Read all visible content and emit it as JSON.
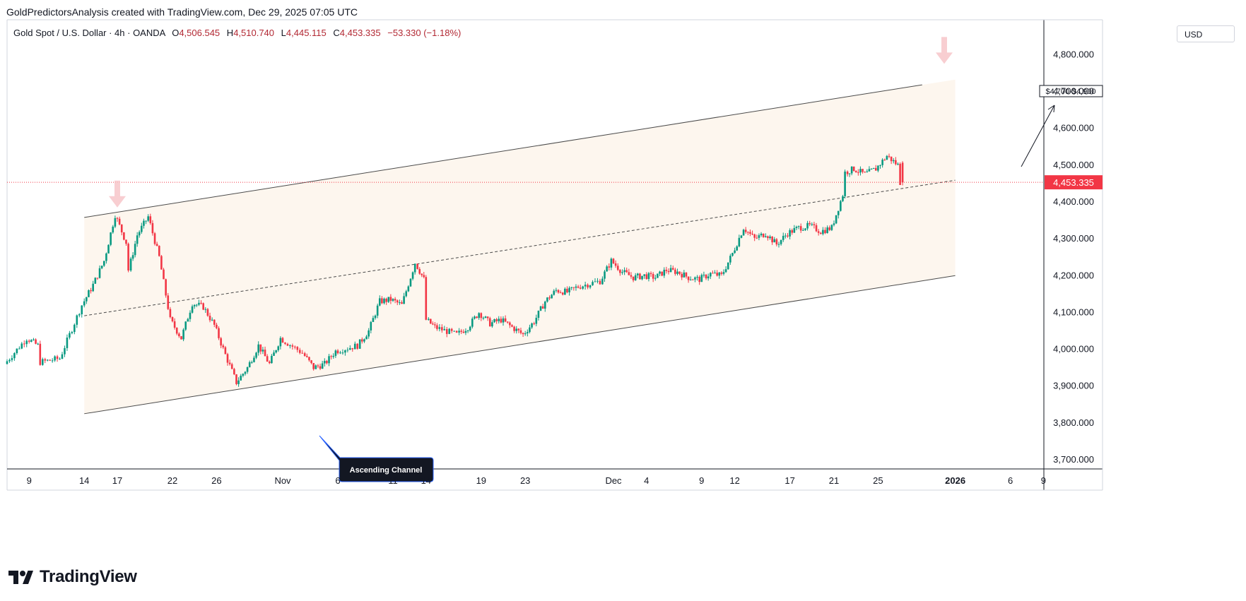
{
  "header": {
    "credit": "GoldPredictorsAnalysis created with TradingView.com, Dec 29, 2025 07:05 UTC"
  },
  "legend": {
    "symbol": "Gold Spot / U.S. Dollar · 4h · OANDA",
    "o_label": "O",
    "o_value": "4,506.545",
    "h_label": "H",
    "h_value": "4,510.740",
    "l_label": "L",
    "l_value": "4,445.115",
    "c_label": "C",
    "c_value": "4,453.335",
    "change": "−53.330 (−1.18%)"
  },
  "currency": "USD",
  "brand": {
    "name": "TradingView",
    "logo_icon": "tradingview-logo-icon"
  },
  "colors": {
    "up": "#089981",
    "down": "#f23645",
    "channel_fill": "#fdf6ee",
    "price_line": "#f23645",
    "annotation_bg": "#131722",
    "marker_arrow": "#f7c6c9"
  },
  "annotations": {
    "channel_label": "Ascending Channel",
    "target_label": "$4,700-$4,900"
  },
  "chart_data": {
    "type": "candlestick",
    "timeframe": "4h",
    "symbol": "XAUUSD",
    "y_axis_ticks": [
      "4,800.000",
      "4,700.000",
      "4,600.000",
      "4,500.000",
      "4,400.000",
      "4,300.000",
      "4,200.000",
      "4,100.000",
      "4,000.000",
      "3,900.000",
      "3,800.000",
      "3,700.000"
    ],
    "y_tick_values": [
      4800,
      4700,
      4600,
      4500,
      4400,
      4300,
      4200,
      4100,
      4000,
      3900,
      3800,
      3700
    ],
    "x_axis_ticks": [
      {
        "label": "9",
        "date": "2025-10-09",
        "bold": false
      },
      {
        "label": "14",
        "date": "2025-10-14",
        "bold": false
      },
      {
        "label": "17",
        "date": "2025-10-17",
        "bold": false
      },
      {
        "label": "22",
        "date": "2025-10-22",
        "bold": false
      },
      {
        "label": "26",
        "date": "2025-10-26",
        "bold": false
      },
      {
        "label": "Nov",
        "date": "2025-11-01",
        "bold": false
      },
      {
        "label": "6",
        "date": "2025-11-06",
        "bold": false
      },
      {
        "label": "11",
        "date": "2025-11-11",
        "bold": false
      },
      {
        "label": "14",
        "date": "2025-11-14",
        "bold": false
      },
      {
        "label": "19",
        "date": "2025-11-19",
        "bold": false
      },
      {
        "label": "23",
        "date": "2025-11-23",
        "bold": false
      },
      {
        "label": "Dec",
        "date": "2025-12-01",
        "bold": false
      },
      {
        "label": "4",
        "date": "2025-12-04",
        "bold": false
      },
      {
        "label": "9",
        "date": "2025-12-09",
        "bold": false
      },
      {
        "label": "12",
        "date": "2025-12-12",
        "bold": false
      },
      {
        "label": "17",
        "date": "2025-12-17",
        "bold": false
      },
      {
        "label": "21",
        "date": "2025-12-21",
        "bold": false
      },
      {
        "label": "25",
        "date": "2025-12-25",
        "bold": false
      },
      {
        "label": "2026",
        "date": "2026-01-01",
        "bold": true
      },
      {
        "label": "6",
        "date": "2026-01-06",
        "bold": false
      },
      {
        "label": "9",
        "date": "2026-01-09",
        "bold": false
      }
    ],
    "last_price": 4453.335,
    "last_price_label": "4,453.335",
    "ohlc": {
      "open": 4506.545,
      "high": 4510.74,
      "low": 4445.115,
      "close": 4453.335,
      "change": -53.33,
      "change_pct": -1.18
    },
    "close_path": [
      {
        "date": "2025-10-07",
        "close": 3960
      },
      {
        "date": "2025-10-09",
        "close": 4030
      },
      {
        "date": "2025-10-10",
        "close": 4010
      },
      {
        "date": "2025-10-10",
        "close": 3965
      },
      {
        "date": "2025-10-12",
        "close": 3975
      },
      {
        "date": "2025-10-14",
        "close": 4120
      },
      {
        "date": "2025-10-15",
        "close": 4175
      },
      {
        "date": "2025-10-16",
        "close": 4240
      },
      {
        "date": "2025-10-17",
        "close": 4365
      },
      {
        "date": "2025-10-18",
        "close": 4290
      },
      {
        "date": "2025-10-18",
        "close": 4215
      },
      {
        "date": "2025-10-19",
        "close": 4310
      },
      {
        "date": "2025-10-20",
        "close": 4360
      },
      {
        "date": "2025-10-21",
        "close": 4250
      },
      {
        "date": "2025-10-22",
        "close": 4080
      },
      {
        "date": "2025-10-23",
        "close": 4030
      },
      {
        "date": "2025-10-24",
        "close": 4125
      },
      {
        "date": "2025-10-25",
        "close": 4115
      },
      {
        "date": "2025-10-26",
        "close": 4065
      },
      {
        "date": "2025-10-27",
        "close": 3985
      },
      {
        "date": "2025-10-28",
        "close": 3910
      },
      {
        "date": "2025-10-29",
        "close": 3950
      },
      {
        "date": "2025-10-30",
        "close": 4010
      },
      {
        "date": "2025-10-31",
        "close": 3960
      },
      {
        "date": "2025-11-01",
        "close": 4030
      },
      {
        "date": "2025-11-03",
        "close": 3990
      },
      {
        "date": "2025-11-04",
        "close": 3950
      },
      {
        "date": "2025-11-05",
        "close": 3960
      },
      {
        "date": "2025-11-06",
        "close": 3995
      },
      {
        "date": "2025-11-08",
        "close": 4010
      },
      {
        "date": "2025-11-09",
        "close": 4050
      },
      {
        "date": "2025-11-10",
        "close": 4130
      },
      {
        "date": "2025-11-11",
        "close": 4135
      },
      {
        "date": "2025-11-12",
        "close": 4120
      },
      {
        "date": "2025-11-13",
        "close": 4215
      },
      {
        "date": "2025-11-13",
        "close": 4235
      },
      {
        "date": "2025-11-14",
        "close": 4190
      },
      {
        "date": "2025-11-14",
        "close": 4080
      },
      {
        "date": "2025-11-15",
        "close": 4060
      },
      {
        "date": "2025-11-17",
        "close": 4040
      },
      {
        "date": "2025-11-18",
        "close": 4060
      },
      {
        "date": "2025-11-19",
        "close": 4100
      },
      {
        "date": "2025-11-20",
        "close": 4070
      },
      {
        "date": "2025-11-21",
        "close": 4080
      },
      {
        "date": "2025-11-22",
        "close": 4060
      },
      {
        "date": "2025-11-23",
        "close": 4040
      },
      {
        "date": "2025-11-24",
        "close": 4075
      },
      {
        "date": "2025-11-25",
        "close": 4130
      },
      {
        "date": "2025-11-26",
        "close": 4160
      },
      {
        "date": "2025-11-27",
        "close": 4155
      },
      {
        "date": "2025-11-28",
        "close": 4170
      },
      {
        "date": "2025-11-30",
        "close": 4185
      },
      {
        "date": "2025-12-01",
        "close": 4240
      },
      {
        "date": "2025-12-02",
        "close": 4210
      },
      {
        "date": "2025-12-03",
        "close": 4195
      },
      {
        "date": "2025-12-04",
        "close": 4200
      },
      {
        "date": "2025-12-05",
        "close": 4195
      },
      {
        "date": "2025-12-06",
        "close": 4215
      },
      {
        "date": "2025-12-07",
        "close": 4210
      },
      {
        "date": "2025-12-08",
        "close": 4195
      },
      {
        "date": "2025-12-09",
        "close": 4190
      },
      {
        "date": "2025-12-10",
        "close": 4205
      },
      {
        "date": "2025-12-11",
        "close": 4200
      },
      {
        "date": "2025-12-12",
        "close": 4260
      },
      {
        "date": "2025-12-13",
        "close": 4330
      },
      {
        "date": "2025-12-14",
        "close": 4300
      },
      {
        "date": "2025-12-15",
        "close": 4315
      },
      {
        "date": "2025-12-16",
        "close": 4285
      },
      {
        "date": "2025-12-17",
        "close": 4315
      },
      {
        "date": "2025-12-18",
        "close": 4330
      },
      {
        "date": "2025-12-19",
        "close": 4335
      },
      {
        "date": "2025-12-20",
        "close": 4320
      },
      {
        "date": "2025-12-21",
        "close": 4330
      },
      {
        "date": "2025-12-22",
        "close": 4420
      },
      {
        "date": "2025-12-22",
        "close": 4480
      },
      {
        "date": "2025-12-23",
        "close": 4490
      },
      {
        "date": "2025-12-24",
        "close": 4475
      },
      {
        "date": "2025-12-25",
        "close": 4490
      },
      {
        "date": "2025-12-26",
        "close": 4525
      },
      {
        "date": "2025-12-27",
        "close": 4500
      },
      {
        "date": "2025-12-27",
        "close": 4453
      }
    ],
    "channel": {
      "upper": [
        {
          "date": "2025-10-14",
          "price": 4358
        },
        {
          "date": "2025-12-29",
          "price": 4718
        }
      ],
      "lower": [
        {
          "date": "2025-10-14",
          "price": 3825
        },
        {
          "date": "2026-01-01",
          "price": 4200
        }
      ],
      "midline": [
        {
          "date": "2025-10-14",
          "price": 4091
        },
        {
          "date": "2026-01-01",
          "price": 4459
        }
      ]
    },
    "markers": [
      {
        "type": "down-arrow",
        "date": "2025-10-17",
        "price": 4385
      },
      {
        "type": "down-arrow",
        "date": "2025-12-31",
        "price": 4775
      }
    ]
  }
}
